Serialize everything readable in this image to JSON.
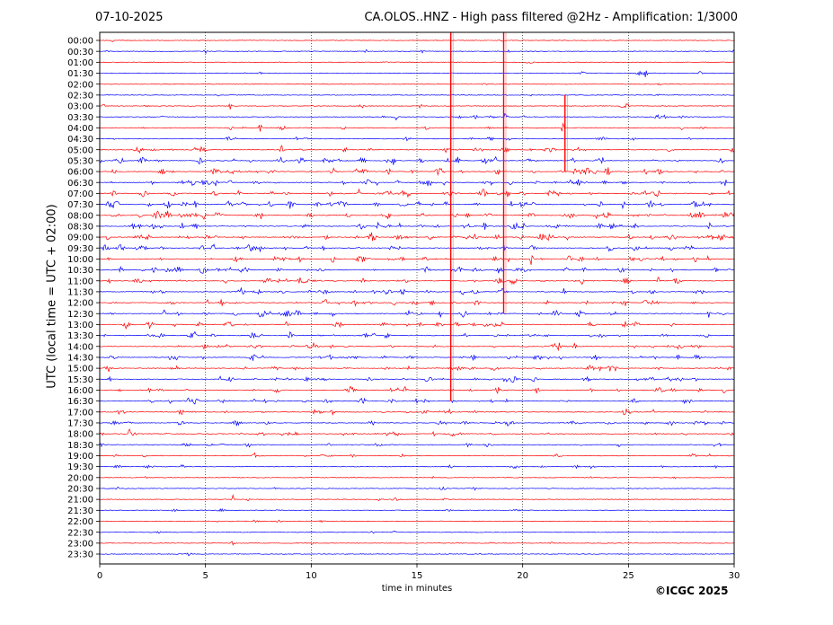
{
  "header": {
    "date": "07-10-2025",
    "title": "CA.OLOS..HNZ - High pass filtered @2Hz - Amplification: 1/3000"
  },
  "footer": {
    "copyright": "©ICGC 2025"
  },
  "chart_data": {
    "type": "line",
    "title": "CA.OLOS..HNZ - High pass filtered @2Hz - Amplification: 1/3000",
    "xlabel": "time in minutes",
    "ylabel": "UTC (local time = UTC + 02:00)",
    "xlim": [
      0,
      30
    ],
    "xticks": [
      "0",
      "5",
      "10",
      "15",
      "20",
      "25",
      "30"
    ],
    "vertical_gridlines_at": [
      5,
      10,
      15,
      20,
      25
    ],
    "grid": "dotted vertical",
    "rows": [
      "00:00",
      "00:30",
      "01:00",
      "01:30",
      "02:00",
      "02:30",
      "03:00",
      "03:30",
      "04:00",
      "04:30",
      "05:00",
      "05:30",
      "06:00",
      "06:30",
      "07:00",
      "07:30",
      "08:00",
      "08:30",
      "09:00",
      "09:30",
      "10:00",
      "10:30",
      "11:00",
      "11:30",
      "12:00",
      "12:30",
      "13:00",
      "13:30",
      "14:00",
      "14:30",
      "15:00",
      "15:30",
      "16:00",
      "16:30",
      "17:00",
      "17:30",
      "18:00",
      "18:30",
      "19:00",
      "19:30",
      "20:00",
      "20:30",
      "21:00",
      "21:30",
      "22:00",
      "22:30",
      "23:00",
      "23:30"
    ],
    "row_colors": [
      "#ff0000",
      "#0000ff"
    ],
    "activity": [
      0.05,
      0.1,
      0.05,
      0.1,
      0.05,
      0.08,
      0.15,
      0.2,
      0.25,
      0.3,
      0.55,
      0.75,
      0.85,
      0.9,
      0.9,
      0.9,
      0.95,
      0.9,
      0.85,
      0.85,
      0.85,
      0.8,
      0.75,
      0.75,
      0.7,
      0.7,
      0.7,
      0.65,
      0.7,
      0.65,
      0.65,
      0.65,
      0.65,
      0.6,
      0.6,
      0.55,
      0.5,
      0.4,
      0.3,
      0.25,
      0.12,
      0.1,
      0.1,
      0.1,
      0.08,
      0.06,
      0.05,
      0.05
    ],
    "events": [
      {
        "row": 1,
        "minute": 5.0,
        "amp": 3
      },
      {
        "row": 3,
        "minute": 25.8,
        "amp": 7
      },
      {
        "row": 6,
        "minute": 6.2,
        "amp": 6
      },
      {
        "row": 6,
        "minute": 25.0,
        "amp": 4
      },
      {
        "row": 7,
        "minute": 14.0,
        "amp": 4
      },
      {
        "row": 7,
        "minute": 19.2,
        "amp": 6
      },
      {
        "row": 8,
        "minute": 7.6,
        "amp": 6
      },
      {
        "row": 8,
        "minute": 21.9,
        "amp": 8
      },
      {
        "row": 10,
        "minute": 8.6,
        "amp": 6
      },
      {
        "row": 10,
        "minute": 11.6,
        "amp": 5
      },
      {
        "row": 11,
        "minute": 11.3,
        "amp": 6
      },
      {
        "row": 11,
        "minute": 18.7,
        "amp": 6
      },
      {
        "row": 16,
        "minute": 7.6,
        "amp": 8
      },
      {
        "row": 17,
        "minute": 3.9,
        "amp": 7
      },
      {
        "row": 19,
        "minute": 7.0,
        "amp": 7
      },
      {
        "row": 20,
        "minute": 20.4,
        "amp": 7
      },
      {
        "row": 21,
        "minute": 3.2,
        "amp": 6
      },
      {
        "row": 22,
        "minute": 22.8,
        "amp": 5
      },
      {
        "row": 25,
        "minute": 28.8,
        "amp": 5
      },
      {
        "row": 32,
        "minute": 14.4,
        "amp": 7
      },
      {
        "row": 36,
        "minute": 1.4,
        "amp": 6
      },
      {
        "row": 38,
        "minute": 7.3,
        "amp": 5
      },
      {
        "row": 39,
        "minute": 23.3,
        "amp": 5
      },
      {
        "row": 42,
        "minute": 6.3,
        "amp": 5
      },
      {
        "row": 44,
        "minute": 26.0,
        "amp": 5
      },
      {
        "row": 46,
        "minute": 6.3,
        "amp": 4
      },
      {
        "row": 46,
        "minute": 21.3,
        "amp": 4
      }
    ],
    "glitches": [
      {
        "minute": 16.6,
        "from_row": 0,
        "to_row": 33,
        "color": "#ff0000"
      },
      {
        "minute": 19.1,
        "from_row": 0,
        "to_row": 25,
        "color": "#ff0000"
      },
      {
        "minute": 22.0,
        "from_row": 5,
        "to_row": 12,
        "color": "#ff0000"
      }
    ]
  }
}
